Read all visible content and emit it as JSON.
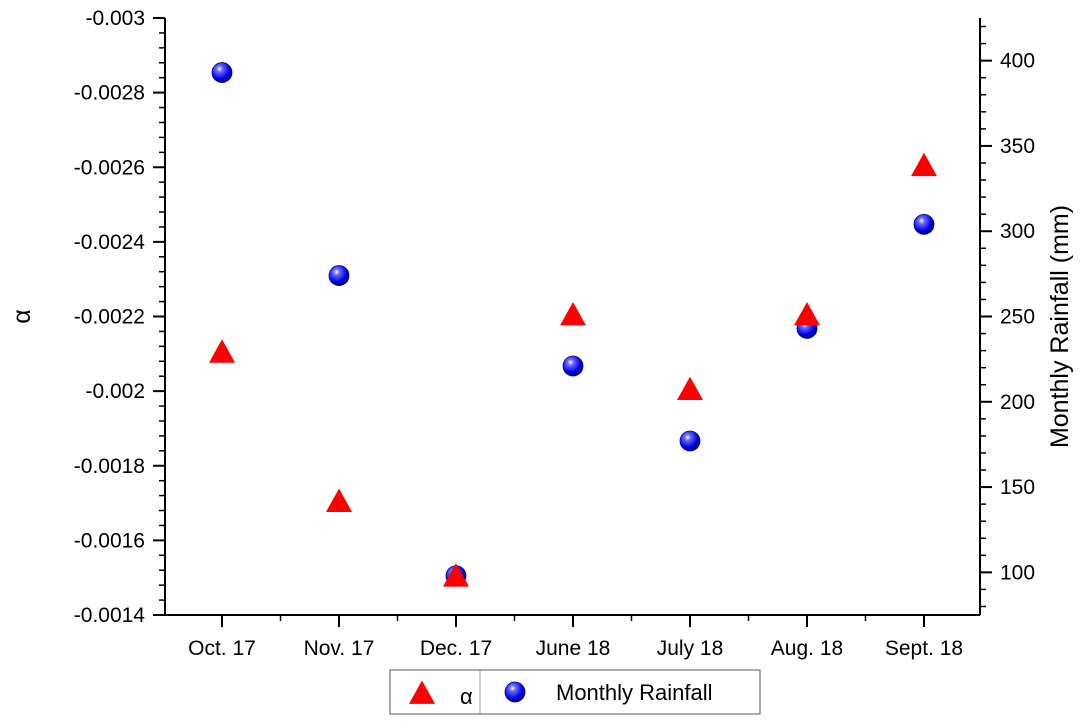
{
  "chart_data": {
    "type": "scatter",
    "categories": [
      "Oct. 17",
      "Nov. 17",
      "Dec. 17",
      "June 18",
      "July 18",
      "Aug. 18",
      "Sept. 18"
    ],
    "ylabel_left": "α",
    "ylabel_right": "Monthly Rainfall (mm)",
    "left_axis": {
      "ylim": [
        -0.003,
        -0.0014
      ],
      "ticks": [
        -0.003,
        -0.0028,
        -0.0026,
        -0.0024,
        -0.0022,
        -0.002,
        -0.0018,
        -0.0016,
        -0.0014
      ],
      "tick_labels": [
        "-0.003",
        "-0.0028",
        "-0.0026",
        "-0.0024",
        "-0.0022",
        "-0.002",
        "-0.0018",
        "-0.0016",
        "-0.0014"
      ]
    },
    "right_axis": {
      "ylim": [
        75,
        425
      ],
      "ticks": [
        100,
        150,
        200,
        250,
        300,
        350,
        400
      ],
      "tick_labels": [
        "100",
        "150",
        "200",
        "250",
        "300",
        "350",
        "400"
      ]
    },
    "series": [
      {
        "name": "α",
        "axis": "left",
        "marker": "triangle",
        "color": "#ff0000",
        "values": [
          -0.0021,
          -0.0017,
          -0.0015,
          -0.0022,
          -0.002,
          -0.0022,
          -0.0026
        ]
      },
      {
        "name": "Monthly Rainfall",
        "axis": "right",
        "marker": "sphere",
        "color": "#0000ee",
        "values": [
          393,
          274,
          98,
          221,
          177,
          243,
          304
        ]
      }
    ],
    "grid": false,
    "legend": "bottom-center"
  }
}
